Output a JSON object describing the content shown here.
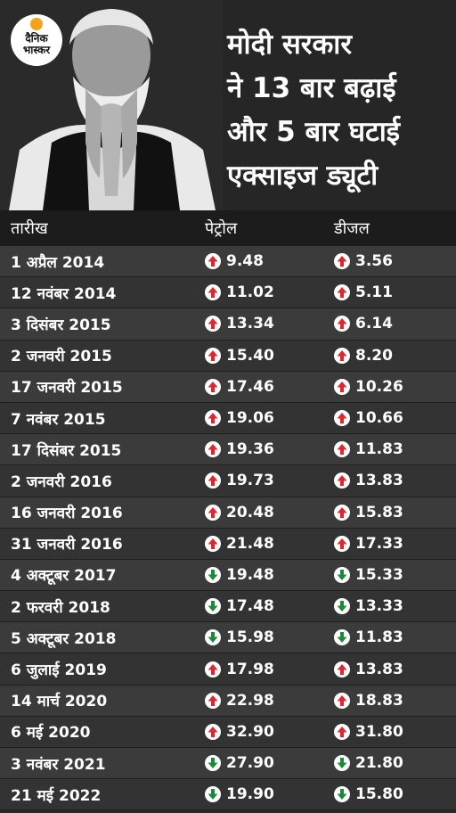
{
  "logo": {
    "line1": "दैनिक",
    "line2": "भास्कर",
    "sun_color": "#f7a21b"
  },
  "headline": {
    "lines": [
      "मोदी सरकार",
      "ने 13 बार बढ़ाई",
      "और 5 बार घटाई",
      "एक्साइज ड्यूटी"
    ]
  },
  "table": {
    "headers": {
      "date": "तारीख",
      "petrol": "पेट्रोल",
      "diesel": "डीजल"
    },
    "up_color": "#e0262c",
    "down_color": "#1c8a3a",
    "rows": [
      {
        "date": "1 अप्रैल 2014",
        "petrol": "9.48",
        "petrol_dir": "up",
        "diesel": "3.56",
        "diesel_dir": "up"
      },
      {
        "date": "12 नवंबर 2014",
        "petrol": "11.02",
        "petrol_dir": "up",
        "diesel": "5.11",
        "diesel_dir": "up"
      },
      {
        "date": "3 दिसंबर 2015",
        "petrol": "13.34",
        "petrol_dir": "up",
        "diesel": "6.14",
        "diesel_dir": "up"
      },
      {
        "date": "2 जनवरी 2015",
        "petrol": "15.40",
        "petrol_dir": "up",
        "diesel": "8.20",
        "diesel_dir": "up"
      },
      {
        "date": "17 जनवरी 2015",
        "petrol": "17.46",
        "petrol_dir": "up",
        "diesel": "10.26",
        "diesel_dir": "up"
      },
      {
        "date": "7 नवंबर 2015",
        "petrol": "19.06",
        "petrol_dir": "up",
        "diesel": "10.66",
        "diesel_dir": "up"
      },
      {
        "date": "17 दिसंबर 2015",
        "petrol": "19.36",
        "petrol_dir": "up",
        "diesel": "11.83",
        "diesel_dir": "up"
      },
      {
        "date": "2 जनवरी 2016",
        "petrol": "19.73",
        "petrol_dir": "up",
        "diesel": "13.83",
        "diesel_dir": "up"
      },
      {
        "date": "16 जनवरी 2016",
        "petrol": "20.48",
        "petrol_dir": "up",
        "diesel": "15.83",
        "diesel_dir": "up"
      },
      {
        "date": "31 जनवरी 2016",
        "petrol": "21.48",
        "petrol_dir": "up",
        "diesel": "17.33",
        "diesel_dir": "up"
      },
      {
        "date": "4 अक्टूबर 2017",
        "petrol": "19.48",
        "petrol_dir": "down",
        "diesel": "15.33",
        "diesel_dir": "down"
      },
      {
        "date": "2 फरवरी 2018",
        "petrol": "17.48",
        "petrol_dir": "down",
        "diesel": "13.33",
        "diesel_dir": "down"
      },
      {
        "date": "5 अक्टूबर 2018",
        "petrol": "15.98",
        "petrol_dir": "down",
        "diesel": "11.83",
        "diesel_dir": "down"
      },
      {
        "date": "6 जुलाई 2019",
        "petrol": "17.98",
        "petrol_dir": "up",
        "diesel": "13.83",
        "diesel_dir": "up"
      },
      {
        "date": "14 मार्च 2020",
        "petrol": "22.98",
        "petrol_dir": "up",
        "diesel": "18.83",
        "diesel_dir": "up"
      },
      {
        "date": "6 मई 2020",
        "petrol": "32.90",
        "petrol_dir": "up",
        "diesel": "31.80",
        "diesel_dir": "up"
      },
      {
        "date": "3 नवंबर 2021",
        "petrol": "27.90",
        "petrol_dir": "down",
        "diesel": "21.80",
        "diesel_dir": "down"
      },
      {
        "date": "21 मई 2022",
        "petrol": "19.90",
        "petrol_dir": "down",
        "diesel": "15.80",
        "diesel_dir": "down"
      }
    ]
  }
}
